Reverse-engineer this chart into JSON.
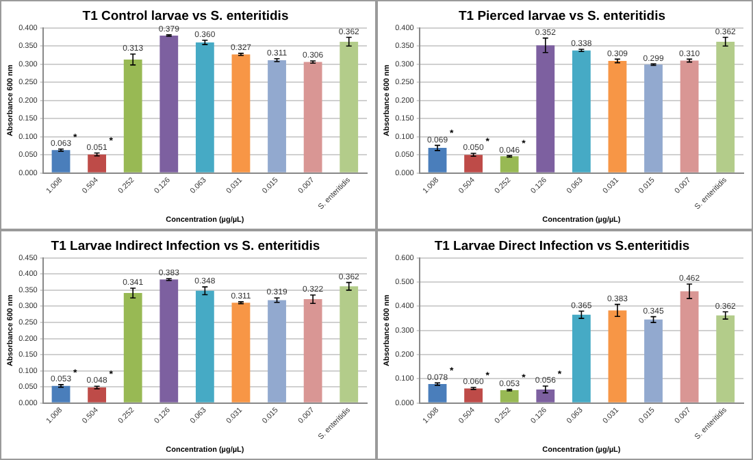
{
  "chart_data": [
    {
      "type": "bar",
      "title": "T1 Control larvae vs S. enteritidis",
      "xlabel": "Concentration (µg/µL)",
      "ylabel": "Absorbance 600 nm",
      "categories": [
        "1.008",
        "0.504",
        "0.252",
        "0.126",
        "0.063",
        "0.031",
        "0.015",
        "0.007",
        "S. enteritidis"
      ],
      "values": [
        0.063,
        0.051,
        0.313,
        0.379,
        0.36,
        0.327,
        0.311,
        0.306,
        0.362
      ],
      "value_labels": [
        "0.063",
        "0.051",
        "0.313",
        "0.379",
        "0.360",
        "0.327",
        "0.311",
        "0.306",
        "0.362"
      ],
      "errors": [
        0.003,
        0.004,
        0.015,
        0.002,
        0.006,
        0.003,
        0.004,
        0.003,
        0.012
      ],
      "colors": [
        "#4a7ebb",
        "#be4b48",
        "#98b954",
        "#7d60a0",
        "#46aac5",
        "#f79646",
        "#92a9cf",
        "#d99694",
        "#b3cc8a"
      ],
      "grid": "y",
      "ylim": [
        0,
        0.4
      ],
      "yticks": [
        {
          "value": 0,
          "label": "0.000"
        },
        {
          "value": 0.05,
          "label": "0.050"
        },
        {
          "value": 0.1,
          "label": "0.100"
        },
        {
          "value": 0.15,
          "label": "0.150"
        },
        {
          "value": 0.2,
          "label": "0.200"
        },
        {
          "value": 0.25,
          "label": "0.250"
        },
        {
          "value": 0.3,
          "label": "0.300"
        },
        {
          "value": 0.35,
          "label": "0.350"
        },
        {
          "value": 0.4,
          "label": "0.400"
        }
      ],
      "annotations": [
        "*",
        "*"
      ]
    },
    {
      "type": "bar",
      "title": "T1 Pierced larvae vs S. enteritidis",
      "xlabel": "Concentration (µg/µL)",
      "ylabel": "Absorbance 600 nm",
      "categories": [
        "1.008",
        "0.504",
        "0.252",
        "0.126",
        "0.063",
        "0.031",
        "0.015",
        "0.007",
        "S. enteritidis"
      ],
      "values": [
        0.069,
        0.05,
        0.046,
        0.352,
        0.338,
        0.309,
        0.299,
        0.31,
        0.362
      ],
      "value_labels": [
        "0.069",
        "0.050",
        "0.046",
        "0.352",
        "0.338",
        "0.309",
        "0.299",
        "0.310",
        "0.362"
      ],
      "errors": [
        0.007,
        0.004,
        0.002,
        0.02,
        0.003,
        0.005,
        0.002,
        0.004,
        0.012
      ],
      "colors": [
        "#4a7ebb",
        "#be4b48",
        "#98b954",
        "#7d60a0",
        "#46aac5",
        "#f79646",
        "#92a9cf",
        "#d99694",
        "#b3cc8a"
      ],
      "grid": "y",
      "ylim": [
        0,
        0.4
      ],
      "yticks": [
        {
          "value": 0,
          "label": "0.000"
        },
        {
          "value": 0.05,
          "label": "0.050"
        },
        {
          "value": 0.1,
          "label": "0.100"
        },
        {
          "value": 0.15,
          "label": "0.150"
        },
        {
          "value": 0.2,
          "label": "0.200"
        },
        {
          "value": 0.25,
          "label": "0.250"
        },
        {
          "value": 0.3,
          "label": "0.300"
        },
        {
          "value": 0.35,
          "label": "0.350"
        },
        {
          "value": 0.4,
          "label": "0.400"
        }
      ],
      "annotations": [
        "*",
        "*",
        "*"
      ]
    },
    {
      "type": "bar",
      "title": "T1 Larvae Indirect Infection vs S. enteritidis",
      "xlabel": "Concentration (µg/µL)",
      "ylabel": "Absorbance 600 nm",
      "categories": [
        "1.008",
        "0.504",
        "0.252",
        "0.126",
        "0.063",
        "0.031",
        "0.015",
        "0.007",
        "S. enteritidis"
      ],
      "values": [
        0.053,
        0.048,
        0.341,
        0.383,
        0.348,
        0.311,
        0.319,
        0.322,
        0.362
      ],
      "value_labels": [
        "0.053",
        "0.048",
        "0.341",
        "0.383",
        "0.348",
        "0.311",
        "0.319",
        "0.322",
        "0.362"
      ],
      "errors": [
        0.004,
        0.004,
        0.015,
        0.003,
        0.012,
        0.003,
        0.007,
        0.013,
        0.012
      ],
      "colors": [
        "#4a7ebb",
        "#be4b48",
        "#98b954",
        "#7d60a0",
        "#46aac5",
        "#f79646",
        "#92a9cf",
        "#d99694",
        "#b3cc8a"
      ],
      "grid": "y",
      "ylim": [
        0,
        0.45
      ],
      "yticks": [
        {
          "value": 0,
          "label": "0.000"
        },
        {
          "value": 0.05,
          "label": "0.050"
        },
        {
          "value": 0.1,
          "label": "0.100"
        },
        {
          "value": 0.15,
          "label": "0.150"
        },
        {
          "value": 0.2,
          "label": "0.200"
        },
        {
          "value": 0.25,
          "label": "0.250"
        },
        {
          "value": 0.3,
          "label": "0.300"
        },
        {
          "value": 0.35,
          "label": "0.350"
        },
        {
          "value": 0.4,
          "label": "0.400"
        },
        {
          "value": 0.45,
          "label": "0.450"
        }
      ],
      "annotations": [
        "*",
        "*"
      ]
    },
    {
      "type": "bar",
      "title": "T1 Larvae Direct Infection vs S.enteritidis",
      "xlabel": "Concentration (µg/µL)",
      "ylabel": "Absorbance 600 nm",
      "categories": [
        "1.008",
        "0.504",
        "0.252",
        "0.126",
        "0.063",
        "0.031",
        "0.015",
        "0.007",
        "S. enteritidis"
      ],
      "values": [
        0.078,
        0.06,
        0.053,
        0.056,
        0.365,
        0.383,
        0.345,
        0.462,
        0.362
      ],
      "value_labels": [
        "0.078",
        "0.060",
        "0.053",
        "0.056",
        "0.365",
        "0.383",
        "0.345",
        "0.462",
        "0.362"
      ],
      "errors": [
        0.005,
        0.004,
        0.003,
        0.014,
        0.015,
        0.025,
        0.012,
        0.03,
        0.015
      ],
      "colors": [
        "#4a7ebb",
        "#be4b48",
        "#98b954",
        "#7d60a0",
        "#46aac5",
        "#f79646",
        "#92a9cf",
        "#d99694",
        "#b3cc8a"
      ],
      "grid": "y",
      "ylim": [
        0,
        0.6
      ],
      "yticks": [
        {
          "value": 0,
          "label": "0.000"
        },
        {
          "value": 0.1,
          "label": "0.100"
        },
        {
          "value": 0.2,
          "label": "0.200"
        },
        {
          "value": 0.3,
          "label": "0.300"
        },
        {
          "value": 0.4,
          "label": "0.400"
        },
        {
          "value": 0.5,
          "label": "0.500"
        },
        {
          "value": 0.6,
          "label": "0.600"
        }
      ],
      "annotations": [
        "*",
        "*",
        "*",
        "*"
      ]
    }
  ]
}
